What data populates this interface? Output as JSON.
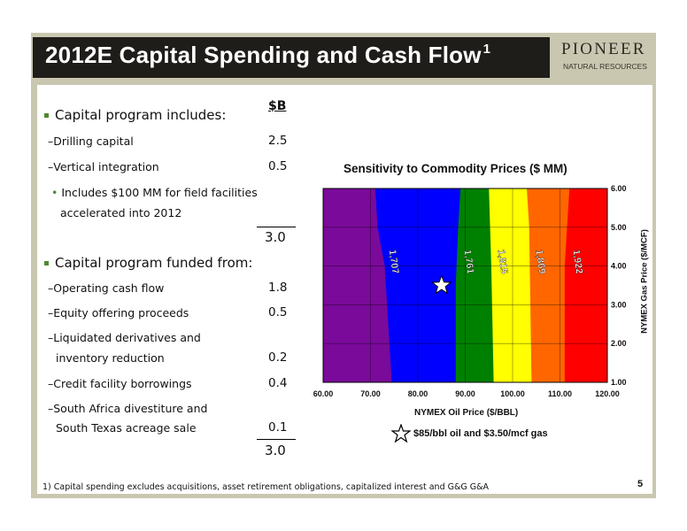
{
  "header": {
    "title": "2012E Capital Spending and Cash Flow",
    "footnote_marker": "1"
  },
  "logo": {
    "name": "PIONEER",
    "subtitle": "NATURAL RESOURCES"
  },
  "table": {
    "unit_header": "$B",
    "sections": [
      {
        "heading": "Capital program includes:",
        "items": [
          {
            "label": "Drilling capital",
            "value": "2.5"
          },
          {
            "label": "Vertical integration",
            "value": "0.5"
          }
        ],
        "sub_note": [
          "Includes $100 MM for field facilities",
          "accelerated into 2012"
        ],
        "total": "3.0"
      },
      {
        "heading": "Capital program funded from:",
        "items": [
          {
            "label": "Operating cash flow",
            "value": "1.8"
          },
          {
            "label": "Equity offering proceeds",
            "value": "0.5"
          },
          {
            "label_lines": [
              "Liquidated derivatives and",
              "inventory reduction"
            ],
            "value": "0.2"
          },
          {
            "label": "Credit facility borrowings",
            "value": "0.4"
          },
          {
            "label_lines": [
              "South Africa divestiture and",
              "South Texas acreage sale"
            ],
            "value": "0.1"
          }
        ],
        "total": "3.0"
      }
    ]
  },
  "chart_data": {
    "type": "heatmap",
    "title": "Sensitivity to Commodity Prices ($ MM)",
    "xlabel": "NYMEX Oil Price ($/BBL)",
    "ylabel": "NYMEX Gas Price ($/MCF)",
    "xlim": [
      60,
      120
    ],
    "ylim": [
      1,
      6
    ],
    "x_ticks": [
      "60.00",
      "70.00",
      "80.00",
      "90.00",
      "100.00",
      "110.00",
      "120.00"
    ],
    "y_ticks": [
      "1.00",
      "2.00",
      "3.00",
      "4.00",
      "5.00",
      "6.00"
    ],
    "y_axis_side": "right",
    "grid": true,
    "contours": [
      {
        "label": "1,707",
        "color": "#0000ff",
        "boundary": [
          [
            74.5,
            1
          ],
          [
            73,
            4
          ],
          [
            71.5,
            5
          ],
          [
            71,
            6
          ]
        ]
      },
      {
        "label": "1,761",
        "color": "#008000",
        "boundary": [
          [
            88,
            1
          ],
          [
            88,
            3.5
          ],
          [
            88.5,
            5
          ],
          [
            89,
            6
          ]
        ]
      },
      {
        "label": "1,815",
        "color": "#ffff00",
        "boundary": [
          [
            96,
            1
          ],
          [
            95.5,
            4
          ],
          [
            95,
            6
          ]
        ]
      },
      {
        "label": "1,869",
        "color": "#ff6600",
        "boundary": [
          [
            104,
            1
          ],
          [
            103.5,
            5
          ],
          [
            103,
            6
          ]
        ]
      },
      {
        "label": "1,922",
        "color": "#ff0000",
        "boundary": [
          [
            111,
            1
          ],
          [
            111,
            4
          ],
          [
            112,
            6
          ]
        ]
      }
    ],
    "base_color": "#7a0a9a",
    "marker": {
      "x": 85,
      "y": 3.5,
      "symbol": "star",
      "label": "$85/bbl oil and $3.50/mcf gas"
    }
  },
  "footer": {
    "footnote": "1)    Capital spending excludes acquisitions, asset retirement obligations, capitalized interest and G&G G&A",
    "page_number": "5"
  }
}
